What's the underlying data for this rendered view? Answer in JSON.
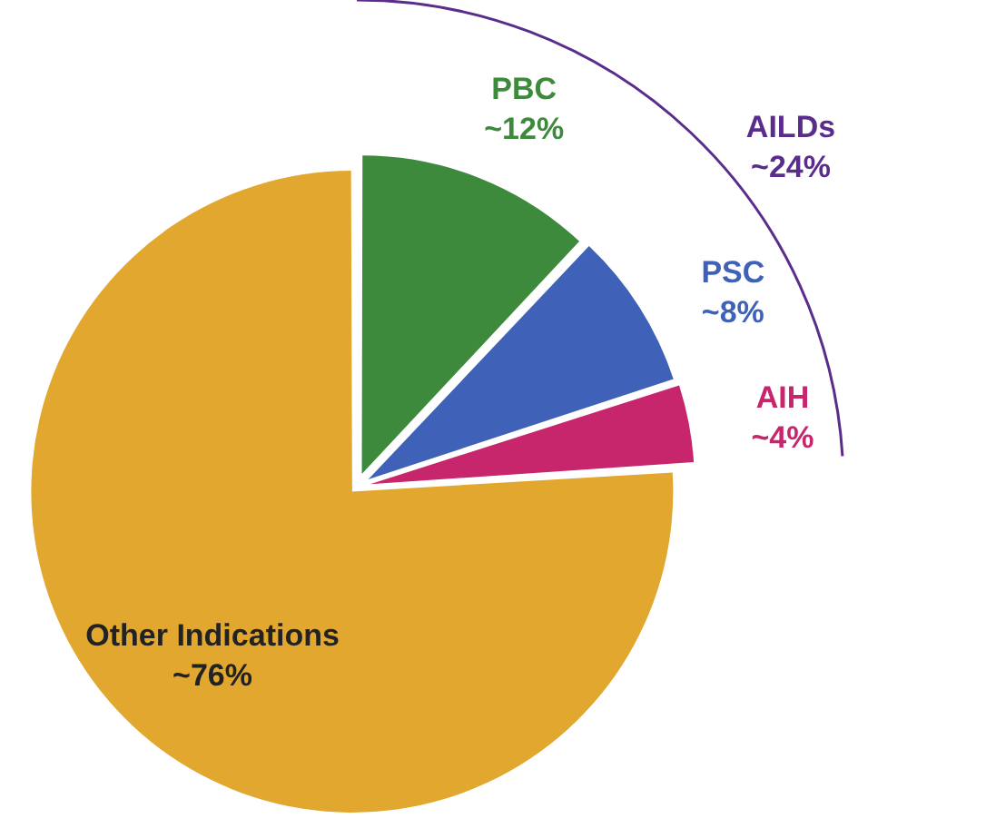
{
  "chart_data": {
    "type": "pie",
    "categories": [
      "PBC",
      "PSC",
      "AIH",
      "Other Indications"
    ],
    "values": [
      12,
      8,
      4,
      76
    ],
    "value_labels": [
      "~12%",
      "~8%",
      "~4%",
      "~76%"
    ],
    "colors": [
      "#3e8a3c",
      "#3f62b8",
      "#c8266c",
      "#e2a72e"
    ],
    "annotations": [
      "AILDs ~24%"
    ],
    "legend": false
  }
}
